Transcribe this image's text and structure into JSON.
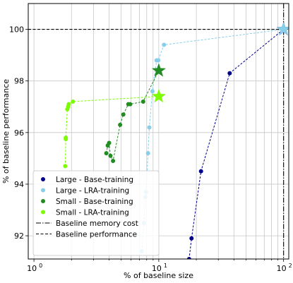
{
  "chart_data": {
    "type": "scatter",
    "title": "",
    "xlabel": "% of baseline size",
    "ylabel": "% of baseline performance",
    "xscale": "log",
    "xlim": [
      0.9,
      110
    ],
    "ylim": [
      91.1,
      101.0
    ],
    "grid": true,
    "legend_placement": "lower-left",
    "x_ticks": [
      {
        "value": 1,
        "label": "10",
        "exp": "0"
      },
      {
        "value": 10,
        "label": "10",
        "exp": "1"
      },
      {
        "value": 100,
        "label": "10",
        "exp": "2"
      }
    ],
    "y_ticks": [
      {
        "value": 92,
        "label": "92"
      },
      {
        "value": 94,
        "label": "94"
      },
      {
        "value": 96,
        "label": "96"
      },
      {
        "value": 98,
        "label": "98"
      },
      {
        "value": 100,
        "label": "100"
      }
    ],
    "series": [
      {
        "name": "Large - Base-training",
        "color": "#00008b",
        "line_style": "dashed",
        "points": [
          [
            17.5,
            91.1
          ],
          [
            18.3,
            91.9
          ],
          [
            21.8,
            94.5
          ],
          [
            37.0,
            98.3
          ],
          [
            100,
            100
          ]
        ],
        "star": [
          100,
          100
        ]
      },
      {
        "name": "Large - LRA-training",
        "color": "#87ceeb",
        "line_style": "dashed",
        "points": [
          [
            7.3,
            91.4
          ],
          [
            7.6,
            92.5
          ],
          [
            7.8,
            93.5
          ],
          [
            7.9,
            93.7
          ],
          [
            8.2,
            95.2
          ],
          [
            8.4,
            96.2
          ],
          [
            8.9,
            97.6
          ],
          [
            9.6,
            98.8
          ],
          [
            9.9,
            98.8
          ],
          [
            11.0,
            99.4
          ],
          [
            100,
            100
          ]
        ],
        "star": [
          100,
          100
        ]
      },
      {
        "name": "Small - Base-training",
        "color": "#228b22",
        "line_style": "dashed",
        "points": [
          [
            3.8,
            95.2
          ],
          [
            3.9,
            95.5
          ],
          [
            4.0,
            95.6
          ],
          [
            4.1,
            95.1
          ],
          [
            4.3,
            94.9
          ],
          [
            4.9,
            96.3
          ],
          [
            5.2,
            96.7
          ],
          [
            5.7,
            97.1
          ],
          [
            5.9,
            97.1
          ],
          [
            7.5,
            97.2
          ],
          [
            10,
            98.4
          ]
        ],
        "star": [
          10,
          98.4
        ]
      },
      {
        "name": "Small - LRA-training",
        "color": "#7cfc00",
        "line_style": "dashed",
        "points": [
          [
            1.78,
            94.7
          ],
          [
            1.8,
            95.8
          ],
          [
            1.8,
            95.75
          ],
          [
            1.85,
            96.9
          ],
          [
            1.88,
            97.0
          ],
          [
            1.9,
            97.1
          ],
          [
            2.05,
            97.2
          ],
          [
            10,
            97.4
          ]
        ],
        "star": [
          10,
          97.4
        ]
      }
    ],
    "reference_lines": [
      {
        "name": "Baseline memory cost",
        "orientation": "vertical",
        "value": 100,
        "line_style": "dashdot",
        "color": "#000000"
      },
      {
        "name": "Baseline performance",
        "orientation": "horizontal",
        "value": 100,
        "line_style": "dashed",
        "color": "#000000"
      }
    ]
  }
}
